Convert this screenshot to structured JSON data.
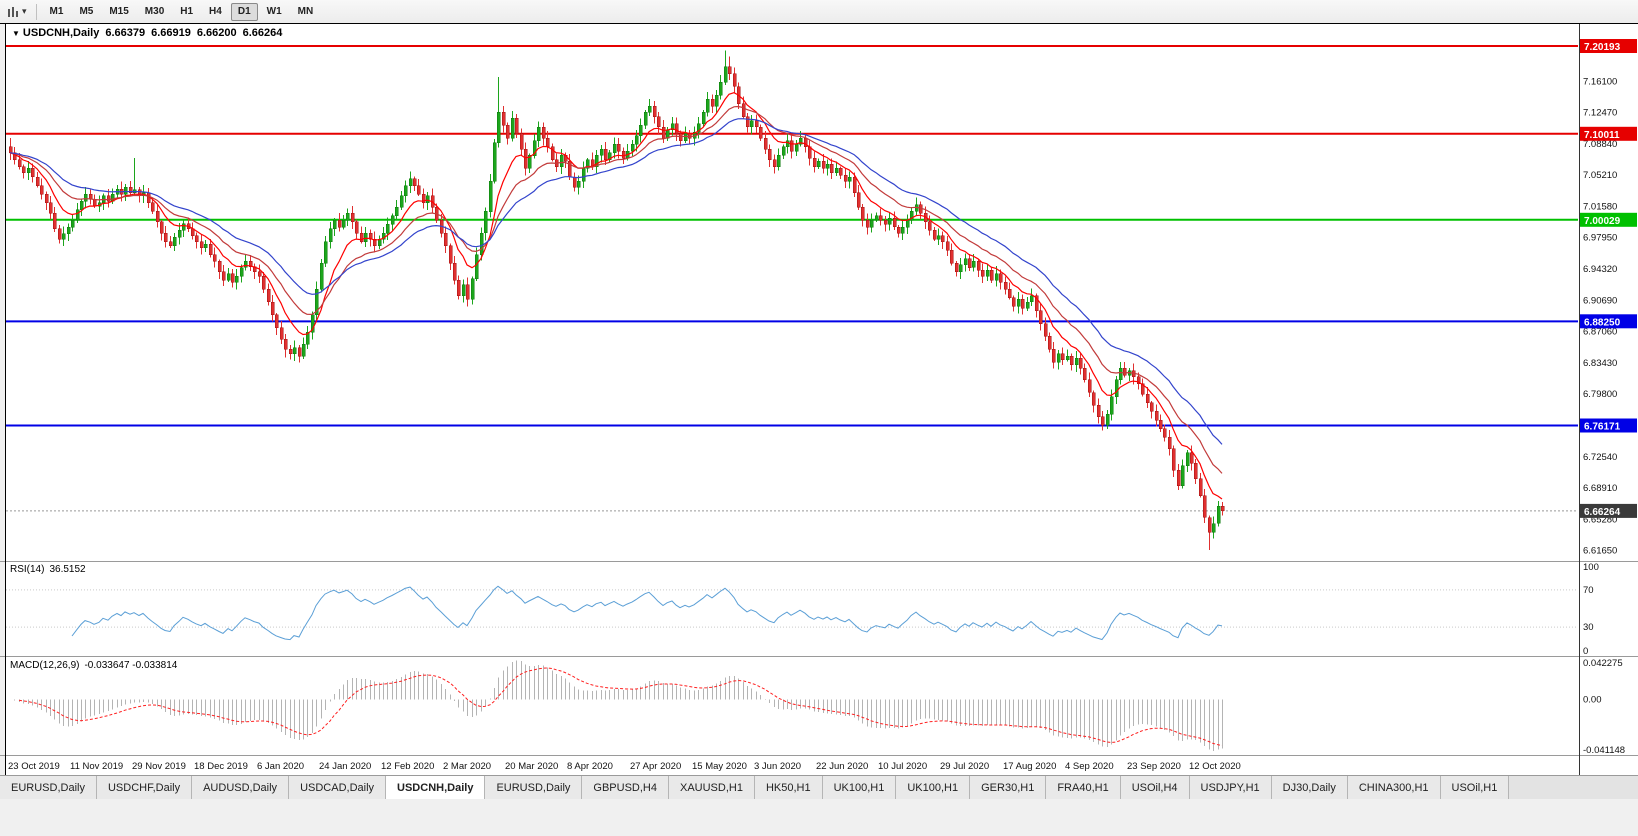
{
  "toolbar": {
    "timeframes": [
      "M1",
      "M5",
      "M15",
      "M30",
      "H1",
      "H4",
      "D1",
      "W1",
      "MN"
    ],
    "active_timeframe": "D1"
  },
  "chart_data": {
    "type": "candlestick",
    "title": "USDCNH,Daily",
    "symbol": "USDCNH",
    "timeframe": "Daily",
    "ohlc_display": {
      "open": "6.66379",
      "high": "6.66919",
      "low": "6.66200",
      "close": "6.66264"
    },
    "y_axis_ticks": [
      "7.16100",
      "7.12470",
      "7.08840",
      "7.05210",
      "7.01580",
      "6.97950",
      "6.94320",
      "6.90690",
      "6.87060",
      "6.83430",
      "6.79800",
      "6.72540",
      "6.68910",
      "6.65280",
      "6.61650"
    ],
    "x_axis_labels": [
      "23 Oct 2019",
      "11 Nov 2019",
      "29 Nov 2019",
      "18 Dec 2019",
      "6 Jan 2020",
      "24 Jan 2020",
      "12 Feb 2020",
      "2 Mar 2020",
      "20 Mar 2020",
      "8 Apr 2020",
      "27 Apr 2020",
      "15 May 2020",
      "3 Jun 2020",
      "22 Jun 2020",
      "10 Jul 2020",
      "29 Jul 2020",
      "17 Aug 2020",
      "4 Sep 2020",
      "23 Sep 2020",
      "12 Oct 2020"
    ],
    "bars_per_x_label": 14,
    "price_lines": [
      {
        "label": "7.20193",
        "price": 7.20193,
        "color": "#e60000"
      },
      {
        "label": "7.10011",
        "price": 7.10011,
        "color": "#e60000"
      },
      {
        "label": "7.00029",
        "price": 7.00029,
        "color": "#00c000"
      },
      {
        "label": "6.88250",
        "price": 6.8825,
        "color": "#0000e6"
      },
      {
        "label": "6.76171",
        "price": 6.76171,
        "color": "#0000e6"
      }
    ],
    "last_price": {
      "label": "6.66264",
      "price": 6.66264,
      "badge_color": "#3a3a3a"
    },
    "series": {
      "first_open": 7.085,
      "closes": [
        7.078,
        7.07,
        7.062,
        7.055,
        7.06,
        7.05,
        7.04,
        7.03,
        7.02,
        7.008,
        6.99,
        6.978,
        6.984,
        6.992,
        7.0,
        7.012,
        7.022,
        7.03,
        7.024,
        7.016,
        7.02,
        7.028,
        7.022,
        7.03,
        7.036,
        7.03,
        7.038,
        7.032,
        7.035,
        7.028,
        7.032,
        7.02,
        7.01,
        6.998,
        6.985,
        6.975,
        6.97,
        6.98,
        6.988,
        6.996,
        6.99,
        6.982,
        6.975,
        6.968,
        6.972,
        6.96,
        6.952,
        6.94,
        6.93,
        6.938,
        6.928,
        6.935,
        6.945,
        6.952,
        6.946,
        6.94,
        6.935,
        6.92,
        6.905,
        6.89,
        6.875,
        6.862,
        6.85,
        6.845,
        6.852,
        6.842,
        6.856,
        6.87,
        6.89,
        6.92,
        6.95,
        6.975,
        6.99,
        7.0,
        6.992,
        7.0,
        7.008,
        6.998,
        6.985,
        6.975,
        6.985,
        6.978,
        6.97,
        6.978,
        6.985,
        6.995,
        7.005,
        7.015,
        7.028,
        7.04,
        7.048,
        7.04,
        7.03,
        7.02,
        7.028,
        7.015,
        7.0,
        6.985,
        6.97,
        6.95,
        6.93,
        6.912,
        6.925,
        6.908,
        6.932,
        6.96,
        6.985,
        7.01,
        7.045,
        7.09,
        7.125,
        7.11,
        7.095,
        7.118,
        7.1,
        7.082,
        7.06,
        7.075,
        7.092,
        7.108,
        7.095,
        7.085,
        7.07,
        7.062,
        7.075,
        7.068,
        7.05,
        7.038,
        7.045,
        7.06,
        7.07,
        7.062,
        7.075,
        7.082,
        7.07,
        7.078,
        7.088,
        7.08,
        7.072,
        7.08,
        7.088,
        7.098,
        7.11,
        7.125,
        7.132,
        7.12,
        7.108,
        7.095,
        7.105,
        7.112,
        7.1,
        7.092,
        7.1,
        7.095,
        7.102,
        7.112,
        7.125,
        7.14,
        7.132,
        7.145,
        7.16,
        7.178,
        7.17,
        7.155,
        7.135,
        7.12,
        7.108,
        7.115,
        7.108,
        7.095,
        7.082,
        7.07,
        7.062,
        7.075,
        7.085,
        7.092,
        7.08,
        7.088,
        7.095,
        7.085,
        7.072,
        7.062,
        7.068,
        7.06,
        7.065,
        7.055,
        7.06,
        7.052,
        7.045,
        7.05,
        7.032,
        7.015,
        7.0,
        6.992,
        7.0,
        7.005,
        7.0,
        6.995,
        7.002,
        6.992,
        6.985,
        6.992,
        7.0,
        7.01,
        7.018,
        7.008,
        6.998,
        6.988,
        6.978,
        6.982,
        6.975,
        6.965,
        6.95,
        6.94,
        6.948,
        6.955,
        6.945,
        6.952,
        6.942,
        6.935,
        6.942,
        6.93,
        6.938,
        6.928,
        6.92,
        6.91,
        6.9,
        6.908,
        6.898,
        6.905,
        6.912,
        6.895,
        6.88,
        6.865,
        6.85,
        6.835,
        6.845,
        6.838,
        6.842,
        6.832,
        6.84,
        6.828,
        6.815,
        6.8,
        6.785,
        6.772,
        6.762,
        6.775,
        6.795,
        6.815,
        6.828,
        6.82,
        6.825,
        6.818,
        6.81,
        6.798,
        6.788,
        6.778,
        6.768,
        6.758,
        6.748,
        6.735,
        6.71,
        6.692,
        6.715,
        6.73,
        6.718,
        6.7,
        6.68,
        6.655,
        6.638,
        6.648,
        6.668,
        6.66264
      ],
      "wick_spikes": [
        {
          "i": 0,
          "h": 7.095
        },
        {
          "i": 28,
          "h": 7.072
        },
        {
          "i": 62,
          "l": 6.8405
        },
        {
          "i": 103,
          "l": 6.903
        },
        {
          "i": 110,
          "h": 7.166
        },
        {
          "i": 161,
          "h": 7.1965
        },
        {
          "i": 162,
          "h": 7.19
        },
        {
          "i": 246,
          "l": 6.756
        },
        {
          "i": 270,
          "l": 6.617
        }
      ]
    },
    "overlays": [
      {
        "name": "ma-fast",
        "type": "ema",
        "period": 9,
        "color": "#ff0000"
      },
      {
        "name": "ma-mid",
        "type": "ema",
        "period": 18,
        "color": "#c23b3b"
      },
      {
        "name": "ma-slow",
        "type": "ema",
        "period": 30,
        "color": "#3344cc"
      }
    ],
    "colors": {
      "up": "#1ca51c",
      "up_edge": "#0b7a0b",
      "down": "#e03030",
      "down_edge": "#a01010",
      "background": "#ffffff",
      "axis_text": "#111111"
    },
    "indicators": [
      {
        "name": "RSI",
        "label": "RSI(14)",
        "value": "36.5152",
        "period": 14,
        "axis_ticks": [
          "100",
          "70",
          "30",
          "0"
        ],
        "levels": [
          70,
          30
        ],
        "color": "#5b9fd6"
      },
      {
        "name": "MACD",
        "label": "MACD(12,26,9)",
        "value": "-0.033647 -0.033814",
        "fast": 12,
        "slow": 26,
        "signal": 9,
        "axis_ticks": [
          "0.042275",
          "0.00",
          "-0.041148"
        ],
        "hist_color": "#b4b4b4",
        "signal_color": "#ff2020"
      }
    ]
  },
  "tabs": [
    {
      "label": "EURUSD,Daily"
    },
    {
      "label": "USDCHF,Daily"
    },
    {
      "label": "AUDUSD,Daily"
    },
    {
      "label": "USDCAD,Daily"
    },
    {
      "label": "USDCNH,Daily",
      "active": true
    },
    {
      "label": "EURUSD,Daily"
    },
    {
      "label": "GBPUSD,H4"
    },
    {
      "label": "XAUUSD,H1"
    },
    {
      "label": "HK50,H1"
    },
    {
      "label": "UK100,H1"
    },
    {
      "label": "UK100,H1"
    },
    {
      "label": "GER30,H1"
    },
    {
      "label": "FRA40,H1"
    },
    {
      "label": "USOil,H4"
    },
    {
      "label": "USDJPY,H1"
    },
    {
      "label": "DJ30,Daily"
    },
    {
      "label": "CHINA300,H1"
    },
    {
      "label": "USOil,H1"
    }
  ]
}
